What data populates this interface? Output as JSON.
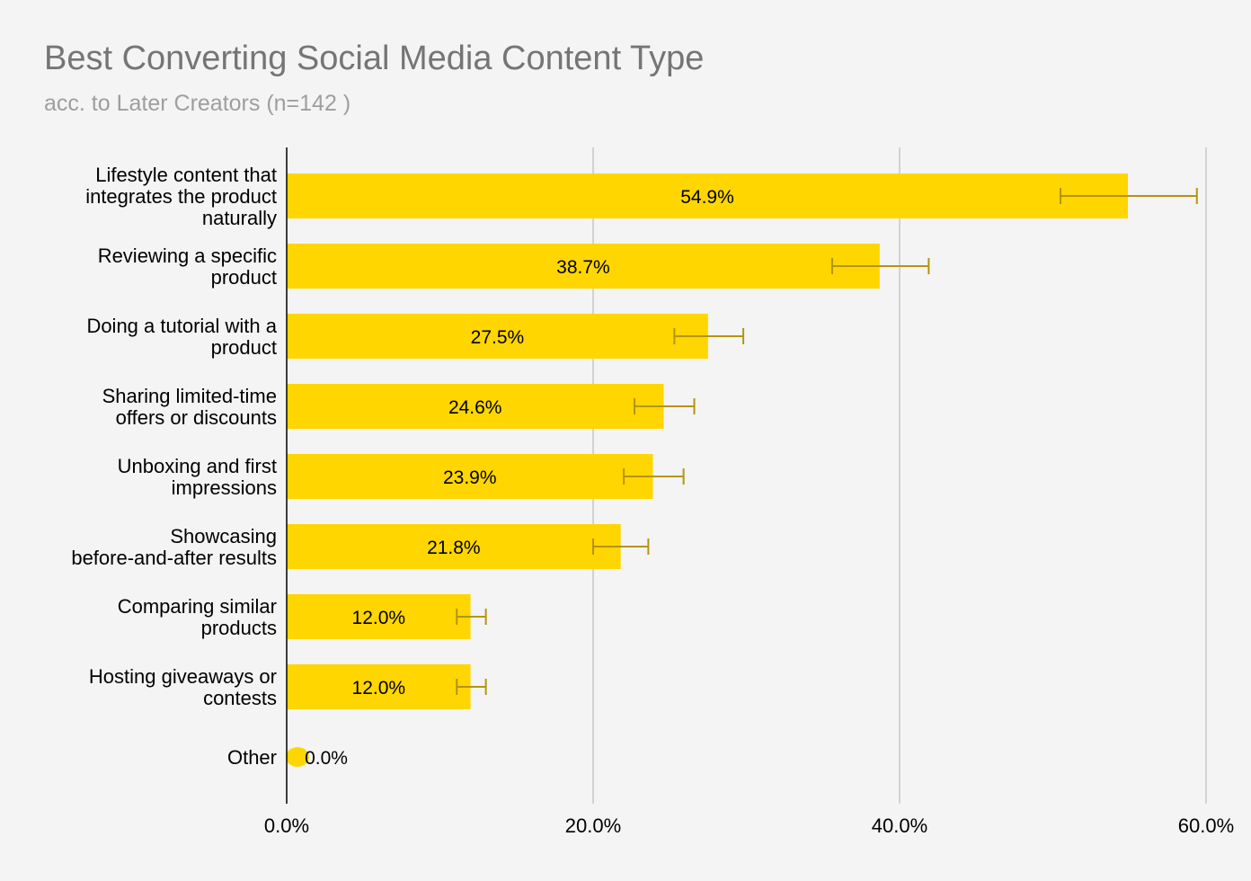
{
  "chart_data": {
    "type": "bar",
    "orientation": "horizontal",
    "title": "Best Converting Social Media Content Type",
    "subtitle": "acc. to Later Creators (n=142 )",
    "categories": [
      [
        "Lifestyle content that",
        "integrates the product",
        "naturally"
      ],
      [
        "Reviewing a specific",
        "product"
      ],
      [
        "Doing a tutorial with a",
        "product"
      ],
      [
        "Sharing limited-time",
        "offers or discounts"
      ],
      [
        "Unboxing and first",
        "impressions"
      ],
      [
        "Showcasing",
        "before-and-after results"
      ],
      [
        "Comparing similar",
        "products"
      ],
      [
        "Hosting giveaways or",
        "contests"
      ],
      [
        "Other"
      ]
    ],
    "values": [
      54.9,
      38.7,
      27.5,
      24.6,
      23.9,
      21.8,
      12.0,
      12.0,
      0.0
    ],
    "value_labels": [
      "54.9%",
      "38.7%",
      "27.5%",
      "24.6%",
      "23.9%",
      "21.8%",
      "12.0%",
      "12.0%",
      "0.0%"
    ],
    "error_bars": [
      [
        50.5,
        59.4
      ],
      [
        35.6,
        41.9
      ],
      [
        25.3,
        29.8
      ],
      [
        22.7,
        26.6
      ],
      [
        22.0,
        25.9
      ],
      [
        20.0,
        23.6
      ],
      [
        11.1,
        13.0
      ],
      [
        11.1,
        13.0
      ],
      [
        null,
        null
      ]
    ],
    "xlim": [
      0,
      60
    ],
    "xticks": [
      0,
      20,
      40,
      60
    ],
    "xtick_labels": [
      "0.0%",
      "20.0%",
      "40.0%",
      "60.0%"
    ],
    "xlabel": "",
    "ylabel": "",
    "grid": true,
    "colors": {
      "bar": "#ffd600",
      "error_bar": "#b59410",
      "grid": "#c7c7c7",
      "axis": "#000000",
      "title": "#757575",
      "subtitle": "#9e9e9e"
    }
  }
}
